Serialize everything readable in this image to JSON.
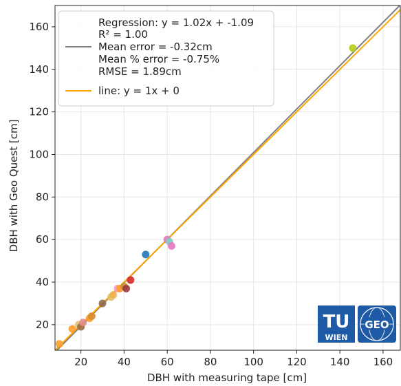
{
  "chart_data": {
    "type": "scatter",
    "xlabel": "DBH with measuring tape [cm]",
    "ylabel": "DBH with Geo Quest [cm]",
    "xlim": [
      8,
      168
    ],
    "ylim": [
      8,
      170
    ],
    "xticks": [
      "20",
      "40",
      "60",
      "80",
      "100",
      "120",
      "140",
      "160"
    ],
    "yticks": [
      "20",
      "40",
      "60",
      "80",
      "100",
      "120",
      "140",
      "160"
    ],
    "xtick_values": [
      20,
      40,
      60,
      80,
      100,
      120,
      140,
      160
    ],
    "ytick_values": [
      20,
      40,
      60,
      80,
      100,
      120,
      140,
      160
    ],
    "grid": true,
    "legend_position": "top-left",
    "legend": {
      "regression_label": "Regression: y = 1.02x + -1.09",
      "r2_label": "R² = 1.00",
      "mean_error_label": "Mean error = -0.32cm",
      "mean_pct_error_label": "Mean % error = -0.75%",
      "rmse_label": "RMSE = 1.89cm",
      "line_label": "line: y = 1x + 0"
    },
    "regression": {
      "slope": 1.02,
      "intercept": -1.09,
      "color": "#808080"
    },
    "reference_line": {
      "slope": 1,
      "intercept": 0,
      "color": "#ffa500"
    },
    "points": [
      {
        "x": 10,
        "y": 11,
        "color": "#ff9f2a"
      },
      {
        "x": 16,
        "y": 18,
        "color": "#ff9f2a"
      },
      {
        "x": 19,
        "y": 20,
        "color": "#e2c16d"
      },
      {
        "x": 20,
        "y": 19,
        "color": "#9a6b3f"
      },
      {
        "x": 21,
        "y": 21,
        "color": "#e38a8a"
      },
      {
        "x": 24,
        "y": 23,
        "color": "#ff9f2a"
      },
      {
        "x": 25,
        "y": 24,
        "color": "#d98b2c"
      },
      {
        "x": 30,
        "y": 30,
        "color": "#8c6a4a"
      },
      {
        "x": 34,
        "y": 33,
        "color": "#e2c16d"
      },
      {
        "x": 35,
        "y": 34,
        "color": "#f0b050"
      },
      {
        "x": 37,
        "y": 37,
        "color": "#f59ccd"
      },
      {
        "x": 38,
        "y": 37,
        "color": "#ff9f2a"
      },
      {
        "x": 40,
        "y": 38,
        "color": "#c89030"
      },
      {
        "x": 41,
        "y": 37,
        "color": "#9a3a3a"
      },
      {
        "x": 43,
        "y": 41,
        "color": "#d62728"
      },
      {
        "x": 50,
        "y": 53,
        "color": "#1f77b4"
      },
      {
        "x": 60,
        "y": 60,
        "color": "#e377c2"
      },
      {
        "x": 61,
        "y": 59,
        "color": "#7fd0c0"
      },
      {
        "x": 62,
        "y": 57,
        "color": "#e377c2"
      },
      {
        "x": 146,
        "y": 150,
        "color": "#b5cc18"
      }
    ],
    "logo_text": {
      "tu": "TU",
      "wien": "WIEN",
      "geo": "GEO"
    }
  }
}
